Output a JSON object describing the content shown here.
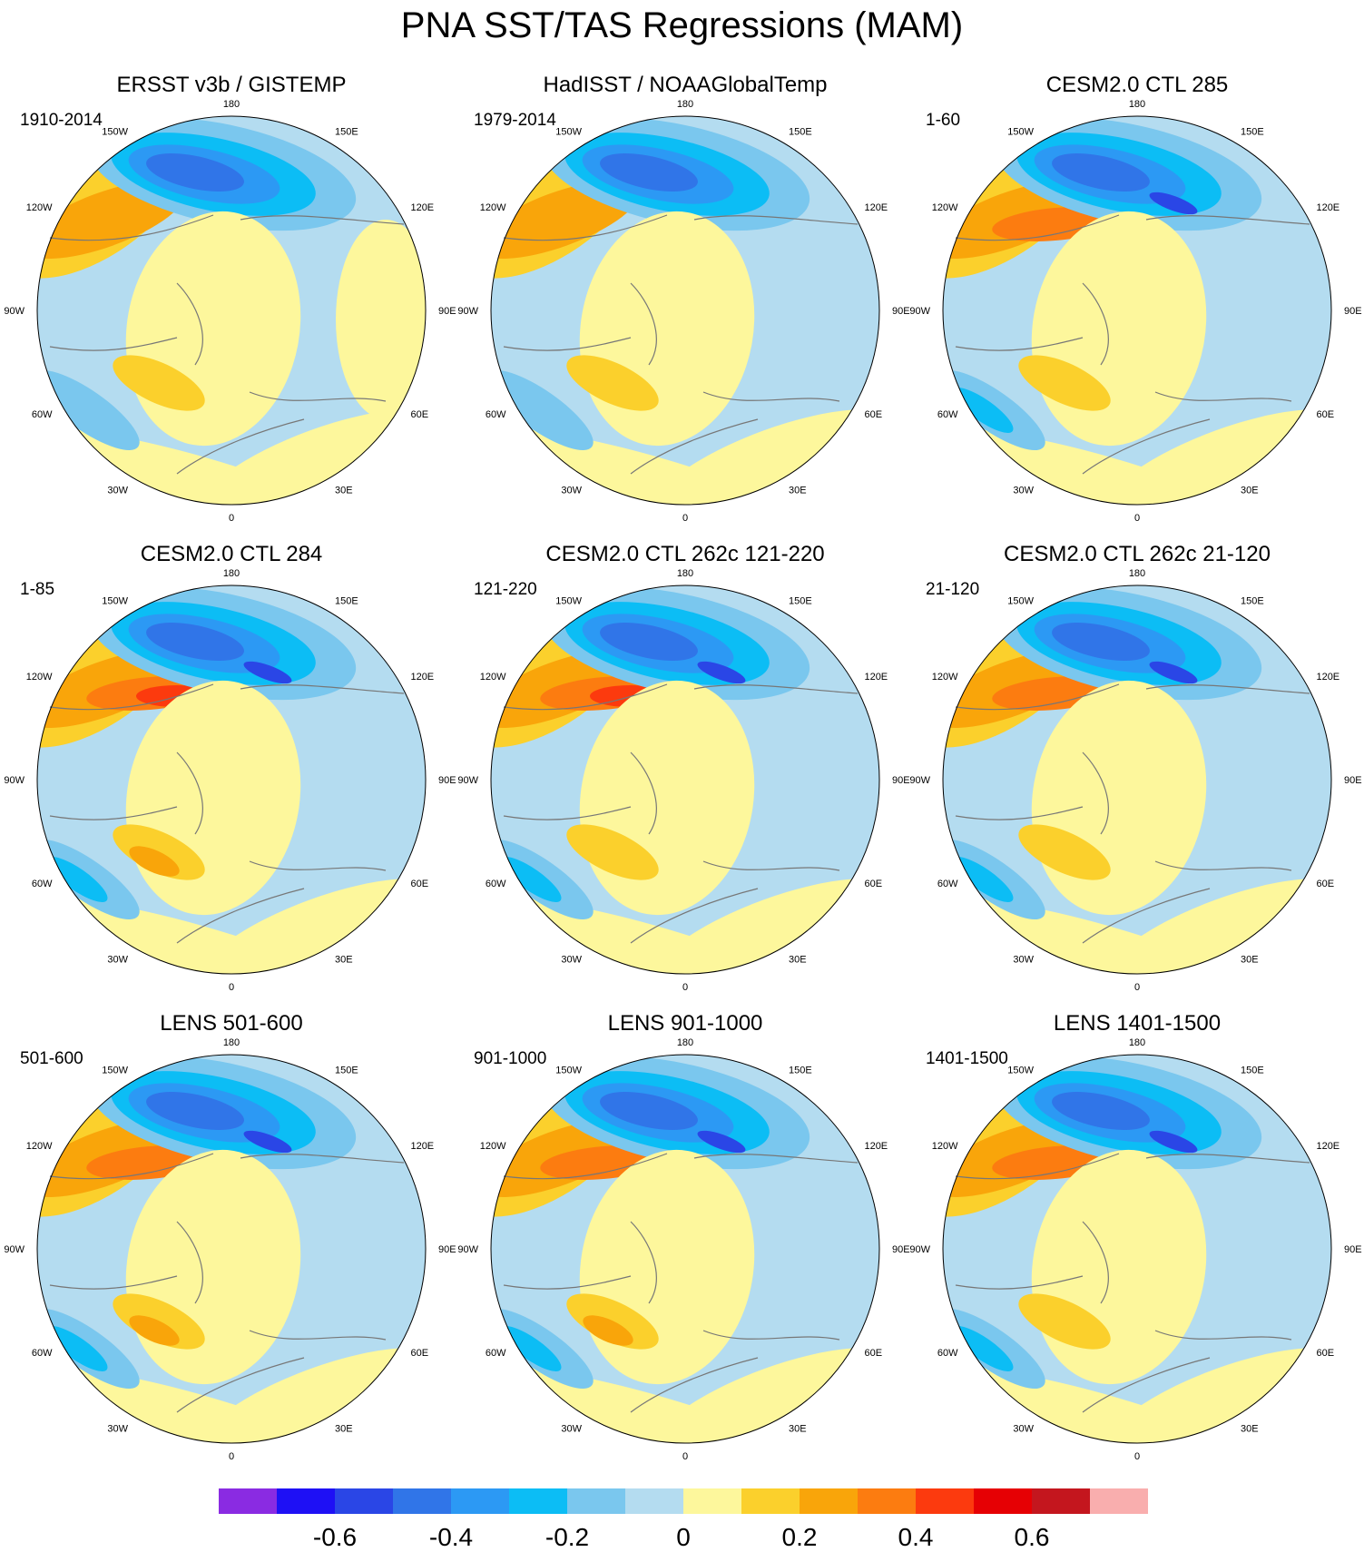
{
  "title": "PNA SST/TAS Regressions (MAM)",
  "panels": [
    {
      "title": "ERSST v3b / GISTEMP",
      "years": "1910-2014"
    },
    {
      "title": "HadISST / NOAAGlobalTemp",
      "years": "1979-2014"
    },
    {
      "title": "CESM2.0 CTL 285",
      "years": "1-60"
    },
    {
      "title": "CESM2.0 CTL 284",
      "years": "1-85"
    },
    {
      "title": "CESM2.0 CTL 262c 121-220",
      "years": "121-220"
    },
    {
      "title": "CESM2.0 CTL 262c 21-120",
      "years": "21-120"
    },
    {
      "title": "LENS 501-600",
      "years": "501-600"
    },
    {
      "title": "LENS 901-1000",
      "years": "901-1000"
    },
    {
      "title": "LENS 1401-1500",
      "years": "1401-1500"
    }
  ],
  "longitude_labels": [
    "180",
    "150E",
    "120E",
    "90E",
    "60E",
    "30E",
    "0",
    "30W",
    "60W",
    "90W",
    "120W",
    "150W"
  ],
  "colorbar": {
    "colors": [
      "#8a2be2",
      "#1e10f5",
      "#2a46e6",
      "#3075e8",
      "#2c99f4",
      "#0cbdf5",
      "#7ac7ee",
      "#b4dcf0",
      "#fdf79c",
      "#fbd02c",
      "#f9a50a",
      "#fc7c10",
      "#fc3a0e",
      "#e60004",
      "#c4161e",
      "#f9aeae"
    ],
    "tick_labels": [
      "-0.6",
      "-0.4",
      "-0.2",
      "0",
      "0.2",
      "0.4",
      "0.6"
    ],
    "tick_values": [
      -0.6,
      -0.4,
      -0.2,
      0,
      0.2,
      0.4,
      0.6
    ],
    "levels": [
      -0.7,
      -0.6,
      -0.5,
      -0.4,
      -0.3,
      -0.2,
      -0.1,
      0,
      0.1,
      0.2,
      0.3,
      0.4,
      0.5,
      0.6,
      0.7
    ]
  }
}
